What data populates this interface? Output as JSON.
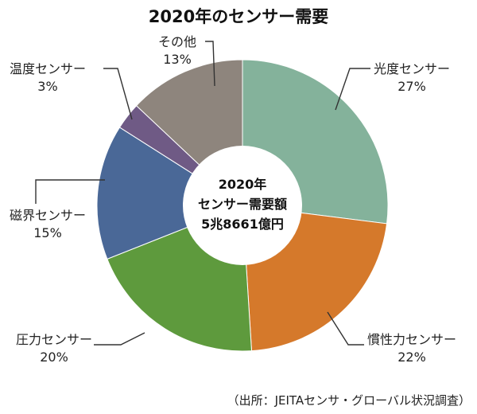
{
  "chart_data": {
    "type": "pie",
    "title": "2020年のセンサー需要",
    "center_text": [
      "2020年",
      "センサー需要額",
      "5兆8661億円"
    ],
    "source": "（出所：JEITAセンサ・グローバル状況調査）",
    "slices": [
      {
        "label": "光度センサー",
        "value": 27,
        "value_text": "27%",
        "color": "#84b29b"
      },
      {
        "label": "慣性力センサー",
        "value": 22,
        "value_text": "22%",
        "color": "#d5792b"
      },
      {
        "label": "圧力センサー",
        "value": 20,
        "value_text": "20%",
        "color": "#5e9a3d"
      },
      {
        "label": "磁界センサー",
        "value": 15,
        "value_text": "15%",
        "color": "#4a6897"
      },
      {
        "label": "温度センサー",
        "value": 3,
        "value_text": "3%",
        "color": "#6f5a85"
      },
      {
        "label": "その他",
        "value": 13,
        "value_text": "13%",
        "color": "#8e857d"
      }
    ]
  }
}
